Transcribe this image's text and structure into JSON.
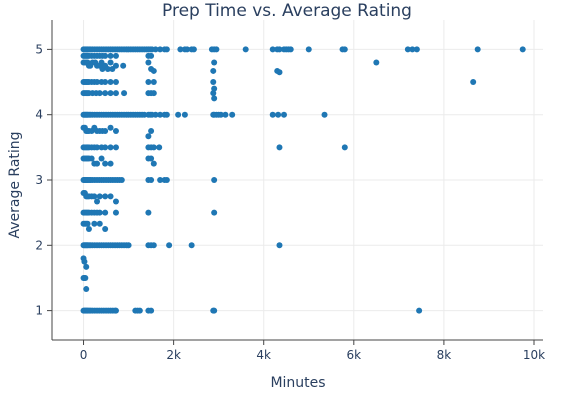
{
  "chart_data": {
    "type": "scatter",
    "title": "Prep Time vs. Average Rating",
    "xlabel": "Minutes",
    "ylabel": "Average Rating",
    "xlim": [
      -700,
      10200
    ],
    "ylim": [
      0.55,
      5.45
    ],
    "x_ticks": [
      0,
      2000,
      4000,
      6000,
      8000,
      10000
    ],
    "x_tick_labels": [
      "0",
      "2k",
      "4k",
      "6k",
      "8k",
      "10k"
    ],
    "y_ticks": [
      1,
      2,
      3,
      4,
      5
    ],
    "y_tick_labels": [
      "1",
      "2",
      "3",
      "4",
      "5"
    ],
    "grid": true,
    "marker_color": "#1f77b4",
    "series": [
      {
        "x": [
          0,
          20,
          40,
          60,
          80,
          100,
          130,
          160,
          200,
          250,
          300,
          350,
          400,
          450,
          500,
          550,
          600,
          650,
          700,
          750,
          800,
          850,
          900,
          950,
          1000,
          1050,
          1100,
          1150,
          1200,
          1250,
          1300,
          1350,
          1400,
          1440,
          1480,
          1520,
          1600,
          1700,
          1800,
          1850,
          2150,
          2250,
          2300,
          2400,
          2450,
          2850,
          2900,
          2950,
          3600,
          4200,
          4300,
          4350,
          4450,
          4500,
          4550,
          4600,
          5000,
          5750,
          5800,
          7200,
          7300,
          7400,
          8750,
          9750,
          0,
          30,
          60,
          90,
          120,
          180,
          240,
          300,
          360,
          420,
          480,
          600,
          720,
          1440,
          1500,
          0,
          30,
          60,
          90,
          120,
          150,
          200,
          260,
          300,
          360,
          400,
          420,
          480,
          540,
          600,
          640,
          720,
          880,
          1440,
          1500,
          1560,
          2880,
          2900,
          4300,
          4350,
          6500,
          8650,
          0,
          30,
          60,
          90,
          120,
          180,
          240,
          300,
          400,
          480,
          600,
          720,
          1440,
          1560,
          2880,
          2900,
          0,
          30,
          60,
          90,
          120,
          200,
          280,
          360,
          480,
          600,
          720,
          900,
          1440,
          1500,
          1560,
          2880,
          2900,
          0,
          20,
          40,
          60,
          80,
          100,
          130,
          160,
          200,
          250,
          300,
          350,
          400,
          450,
          500,
          550,
          600,
          650,
          700,
          750,
          800,
          850,
          900,
          950,
          1000,
          1050,
          1100,
          1150,
          1200,
          1250,
          1300,
          1350,
          1440,
          1480,
          1520,
          1600,
          1700,
          1800,
          1850,
          2100,
          2250,
          2880,
          2900,
          2950,
          3000,
          3050,
          3150,
          3300,
          4200,
          4320,
          4450,
          5350,
          0,
          30,
          60,
          90,
          120,
          180,
          240,
          300,
          360,
          420,
          480,
          600,
          720,
          1440,
          1500,
          0,
          30,
          60,
          90,
          120,
          180,
          240,
          300,
          400,
          480,
          600,
          720,
          1440,
          1500,
          1560,
          1680,
          4350,
          5800,
          0,
          30,
          60,
          90,
          120,
          180,
          240,
          300,
          400,
          480,
          600,
          1440,
          1500,
          1560,
          0,
          20,
          40,
          60,
          80,
          100,
          130,
          160,
          200,
          250,
          300,
          350,
          400,
          450,
          500,
          550,
          600,
          650,
          700,
          750,
          800,
          850,
          1440,
          1500,
          1700,
          1800,
          1850,
          2900,
          0,
          30,
          60,
          90,
          120,
          180,
          240,
          300,
          360,
          480,
          600,
          720,
          0,
          30,
          60,
          90,
          120,
          180,
          240,
          300,
          360,
          480,
          720,
          1440,
          2900,
          0,
          30,
          60,
          90,
          120,
          240,
          360,
          480,
          0,
          20,
          40,
          60,
          80,
          100,
          130,
          160,
          200,
          250,
          300,
          350,
          400,
          450,
          500,
          550,
          600,
          650,
          700,
          750,
          800,
          850,
          900,
          950,
          1000,
          1440,
          1500,
          1560,
          1900,
          2400,
          4350,
          0,
          20,
          60,
          0,
          20,
          40,
          60,
          0,
          20,
          40,
          60,
          80,
          100,
          130,
          160,
          200,
          250,
          300,
          350,
          400,
          450,
          500,
          550,
          600,
          650,
          700,
          720,
          1150,
          1200,
          1250,
          1440,
          1500,
          2880,
          2900,
          7450
        ],
        "y": [
          5,
          5,
          5,
          5,
          5,
          5,
          5,
          5,
          5,
          5,
          5,
          5,
          5,
          5,
          5,
          5,
          5,
          5,
          5,
          5,
          5,
          5,
          5,
          5,
          5,
          5,
          5,
          5,
          5,
          5,
          5,
          5,
          5,
          5,
          5,
          5,
          5,
          5,
          5,
          5,
          5,
          5,
          5,
          5,
          5,
          5,
          5,
          5,
          5,
          5,
          5,
          5,
          5,
          5,
          5,
          5,
          5,
          5,
          5,
          5,
          5,
          5,
          5,
          5,
          4.9,
          4.9,
          4.9,
          4.9,
          4.9,
          4.9,
          4.9,
          4.9,
          4.9,
          4.9,
          4.9,
          4.9,
          4.9,
          4.9,
          4.9,
          4.8,
          4.8,
          4.8,
          4.8,
          4.75,
          4.75,
          4.8,
          4.8,
          4.75,
          4.75,
          4.8,
          4.7,
          4.75,
          4.7,
          4.8,
          4.7,
          4.75,
          4.75,
          4.8,
          4.7,
          4.67,
          4.67,
          4.8,
          4.67,
          4.65,
          4.8,
          4.5,
          4.5,
          4.5,
          4.5,
          4.5,
          4.5,
          4.5,
          4.5,
          4.5,
          4.5,
          4.5,
          4.5,
          4.5,
          4.5,
          4.5,
          4.5,
          4.4,
          4.33,
          4.33,
          4.33,
          4.33,
          4.33,
          4.33,
          4.33,
          4.33,
          4.33,
          4.33,
          4.33,
          4.33,
          4.33,
          4.33,
          4.33,
          4.33,
          4.25,
          4,
          4,
          4,
          4,
          4,
          4,
          4,
          4,
          4,
          4,
          4,
          4,
          4,
          4,
          4,
          4,
          4,
          4,
          4,
          4,
          4,
          4,
          4,
          4,
          4,
          4,
          4,
          4,
          4,
          4,
          4,
          4,
          4,
          4,
          4,
          4,
          4,
          4,
          4,
          4,
          4,
          4,
          4,
          4,
          4,
          4,
          4,
          4,
          4,
          4,
          4,
          4,
          3.8,
          3.8,
          3.75,
          3.75,
          3.75,
          3.75,
          3.8,
          3.75,
          3.75,
          3.75,
          3.75,
          3.8,
          3.75,
          3.67,
          3.75,
          3.5,
          3.5,
          3.5,
          3.5,
          3.5,
          3.5,
          3.5,
          3.5,
          3.5,
          3.5,
          3.5,
          3.5,
          3.5,
          3.5,
          3.5,
          3.5,
          3.5,
          3.5,
          3.33,
          3.33,
          3.33,
          3.33,
          3.33,
          3.33,
          3.25,
          3.25,
          3.33,
          3.25,
          3.25,
          3.33,
          3.33,
          3.25,
          3,
          3,
          3,
          3,
          3,
          3,
          3,
          3,
          3,
          3,
          3,
          3,
          3,
          3,
          3,
          3,
          3,
          3,
          3,
          3,
          3,
          3,
          3,
          3,
          3,
          3,
          3,
          3,
          2.8,
          2.8,
          2.75,
          2.75,
          2.75,
          2.75,
          2.75,
          2.67,
          2.75,
          2.75,
          2.75,
          2.67,
          2.5,
          2.5,
          2.5,
          2.5,
          2.5,
          2.5,
          2.5,
          2.5,
          2.5,
          2.5,
          2.5,
          2.5,
          2.5,
          2.33,
          2.33,
          2.33,
          2.33,
          2.25,
          2.33,
          2.33,
          2.25,
          2,
          2,
          2,
          2,
          2,
          2,
          2,
          2,
          2,
          2,
          2,
          2,
          2,
          2,
          2,
          2,
          2,
          2,
          2,
          2,
          2,
          2,
          2,
          2,
          2,
          2,
          2,
          2,
          2,
          2,
          2,
          1.8,
          1.75,
          1.67,
          1.5,
          1.5,
          1.5,
          1.33,
          1,
          1,
          1,
          1,
          1,
          1,
          1,
          1,
          1,
          1,
          1,
          1,
          1,
          1,
          1,
          1,
          1,
          1,
          1,
          1,
          1,
          1,
          1,
          1,
          1,
          1,
          1,
          1
        ]
      }
    ]
  }
}
